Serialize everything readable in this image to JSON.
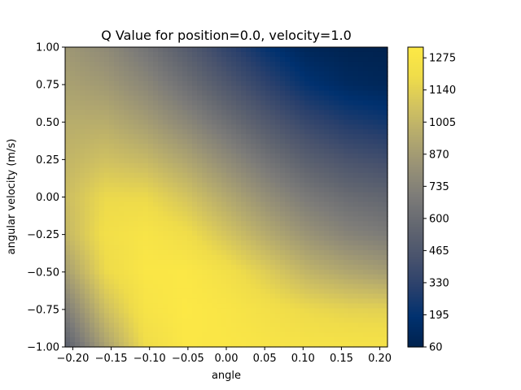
{
  "chart_data": {
    "type": "heatmap",
    "title": "Q Value for position=0.0, velocity=1.0",
    "xlabel": "angle",
    "ylabel": "angular velocity (m/s)",
    "xlim": [
      -0.21,
      0.21
    ],
    "ylim": [
      -1.0,
      1.0
    ],
    "x_ticks": [
      "−0.20",
      "−0.15",
      "−0.10",
      "−0.05",
      "0.00",
      "0.05",
      "0.10",
      "0.15",
      "0.20"
    ],
    "x_tick_values": [
      -0.2,
      -0.15,
      -0.1,
      -0.05,
      0.0,
      0.05,
      0.1,
      0.15,
      0.2
    ],
    "y_ticks": [
      "−1.00",
      "−0.75",
      "−0.50",
      "−0.25",
      "0.00",
      "0.25",
      "0.50",
      "0.75",
      "1.00"
    ],
    "y_tick_values": [
      -1.0,
      -0.75,
      -0.5,
      -0.25,
      0.0,
      0.25,
      0.5,
      0.75,
      1.0
    ],
    "colorbar": {
      "colormap": "cividis",
      "range": [
        60,
        1320
      ],
      "ticks": [
        "60",
        "195",
        "330",
        "465",
        "600",
        "735",
        "870",
        "1005",
        "1140",
        "1275"
      ],
      "tick_values": [
        60,
        195,
        330,
        465,
        600,
        735,
        870,
        1005,
        1140,
        1275
      ]
    },
    "x": [
      -0.21,
      -0.1575,
      -0.105,
      -0.0525,
      0.0,
      0.0525,
      0.105,
      0.1575,
      0.21
    ],
    "y": [
      -1.0,
      -0.75,
      -0.5,
      -0.25,
      0.0,
      0.25,
      0.5,
      0.75,
      1.0
    ],
    "z": [
      [
        520,
        900,
        1200,
        1300,
        1290,
        1270,
        1260,
        1255,
        1250
      ],
      [
        700,
        1050,
        1260,
        1310,
        1280,
        1230,
        1180,
        1150,
        1140
      ],
      [
        880,
        1180,
        1290,
        1300,
        1230,
        1120,
        1000,
        930,
        880
      ],
      [
        1010,
        1220,
        1270,
        1210,
        1080,
        950,
        830,
        740,
        690
      ],
      [
        1040,
        1180,
        1180,
        1080,
        940,
        800,
        680,
        600,
        560
      ],
      [
        1000,
        1060,
        1020,
        920,
        780,
        640,
        520,
        440,
        400
      ],
      [
        960,
        960,
        880,
        760,
        620,
        480,
        360,
        280,
        240
      ],
      [
        900,
        860,
        760,
        620,
        470,
        330,
        200,
        130,
        100
      ],
      [
        850,
        780,
        650,
        500,
        340,
        200,
        100,
        70,
        60
      ]
    ]
  }
}
